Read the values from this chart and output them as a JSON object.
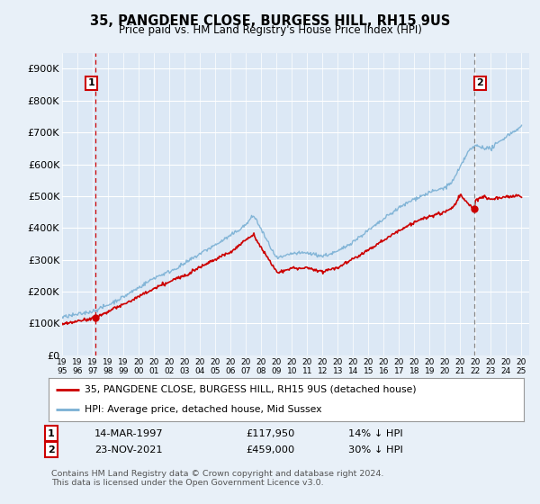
{
  "title": "35, PANGDENE CLOSE, BURGESS HILL, RH15 9US",
  "subtitle": "Price paid vs. HM Land Registry's House Price Index (HPI)",
  "legend_line1": "35, PANGDENE CLOSE, BURGESS HILL, RH15 9US (detached house)",
  "legend_line2": "HPI: Average price, detached house, Mid Sussex",
  "annotation1_label": "1",
  "annotation1_date": "14-MAR-1997",
  "annotation1_price": "£117,950",
  "annotation1_hpi": "14% ↓ HPI",
  "annotation1_year": 1997.2,
  "annotation1_value": 117950,
  "annotation2_label": "2",
  "annotation2_date": "23-NOV-2021",
  "annotation2_price": "£459,000",
  "annotation2_hpi": "30% ↓ HPI",
  "annotation2_year": 2021.9,
  "annotation2_value": 459000,
  "price_color": "#cc0000",
  "hpi_color": "#7ab0d4",
  "annot_dashed_color1": "#cc0000",
  "annot_dashed_color2": "#888888",
  "background_color": "#e8f0f8",
  "plot_bg_color": "#dce8f5",
  "grid_color": "#ffffff",
  "footnote": "Contains HM Land Registry data © Crown copyright and database right 2024.\nThis data is licensed under the Open Government Licence v3.0.",
  "ylim": [
    0,
    950000
  ],
  "yticks": [
    0,
    100000,
    200000,
    300000,
    400000,
    500000,
    600000,
    700000,
    800000,
    900000
  ],
  "ytick_labels": [
    "£0",
    "£100K",
    "£200K",
    "£300K",
    "£400K",
    "£500K",
    "£600K",
    "£700K",
    "£800K",
    "£900K"
  ]
}
